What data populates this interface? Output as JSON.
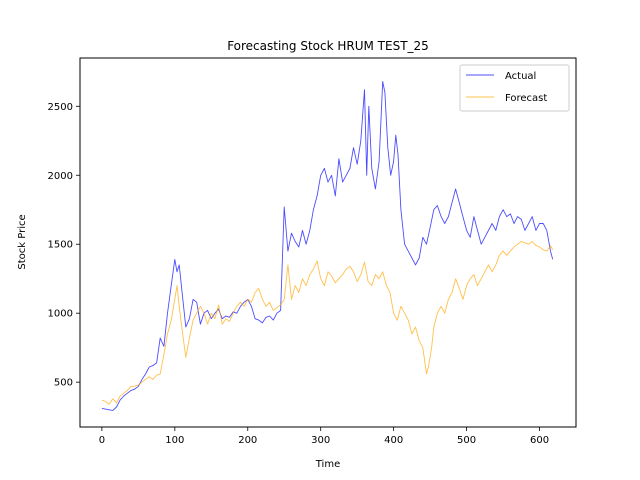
{
  "chart_data": {
    "type": "line",
    "title": "Forecasting Stock HRUM TEST_25",
    "xlabel": "Time",
    "ylabel": "Stock Price",
    "xlim": [
      -30,
      650
    ],
    "ylim": [
      175,
      2850
    ],
    "xticks": [
      0,
      100,
      200,
      300,
      400,
      500,
      600
    ],
    "yticks": [
      500,
      1000,
      1500,
      2000,
      2500
    ],
    "grid": false,
    "legend_position": "top-right",
    "series": [
      {
        "name": "Actual",
        "color": "#0000ff",
        "points": [
          [
            0,
            310
          ],
          [
            5,
            305
          ],
          [
            10,
            300
          ],
          [
            15,
            295
          ],
          [
            20,
            320
          ],
          [
            25,
            370
          ],
          [
            30,
            400
          ],
          [
            35,
            420
          ],
          [
            40,
            440
          ],
          [
            45,
            450
          ],
          [
            50,
            470
          ],
          [
            55,
            520
          ],
          [
            60,
            560
          ],
          [
            65,
            610
          ],
          [
            70,
            620
          ],
          [
            75,
            640
          ],
          [
            80,
            820
          ],
          [
            85,
            760
          ],
          [
            90,
            1000
          ],
          [
            95,
            1200
          ],
          [
            100,
            1390
          ],
          [
            103,
            1300
          ],
          [
            106,
            1350
          ],
          [
            110,
            1150
          ],
          [
            115,
            900
          ],
          [
            120,
            960
          ],
          [
            125,
            1100
          ],
          [
            130,
            1080
          ],
          [
            135,
            920
          ],
          [
            140,
            1000
          ],
          [
            145,
            1020
          ],
          [
            150,
            960
          ],
          [
            155,
            1000
          ],
          [
            160,
            1030
          ],
          [
            165,
            960
          ],
          [
            170,
            980
          ],
          [
            175,
            970
          ],
          [
            180,
            1010
          ],
          [
            185,
            1000
          ],
          [
            190,
            1050
          ],
          [
            195,
            1080
          ],
          [
            200,
            1100
          ],
          [
            205,
            1050
          ],
          [
            210,
            960
          ],
          [
            215,
            950
          ],
          [
            220,
            930
          ],
          [
            225,
            970
          ],
          [
            230,
            980
          ],
          [
            235,
            950
          ],
          [
            240,
            1000
          ],
          [
            245,
            1020
          ],
          [
            250,
            1770
          ],
          [
            255,
            1450
          ],
          [
            260,
            1580
          ],
          [
            265,
            1520
          ],
          [
            270,
            1480
          ],
          [
            275,
            1600
          ],
          [
            280,
            1500
          ],
          [
            285,
            1600
          ],
          [
            290,
            1750
          ],
          [
            295,
            1850
          ],
          [
            300,
            2000
          ],
          [
            305,
            2050
          ],
          [
            310,
            1950
          ],
          [
            315,
            2000
          ],
          [
            320,
            1850
          ],
          [
            325,
            2120
          ],
          [
            330,
            1950
          ],
          [
            335,
            2000
          ],
          [
            340,
            2050
          ],
          [
            345,
            2200
          ],
          [
            350,
            2080
          ],
          [
            355,
            2250
          ],
          [
            360,
            2620
          ],
          [
            363,
            2000
          ],
          [
            366,
            2500
          ],
          [
            370,
            2050
          ],
          [
            375,
            1900
          ],
          [
            380,
            2100
          ],
          [
            385,
            2680
          ],
          [
            388,
            2600
          ],
          [
            392,
            2200
          ],
          [
            396,
            2000
          ],
          [
            400,
            2100
          ],
          [
            403,
            2290
          ],
          [
            406,
            2150
          ],
          [
            410,
            1750
          ],
          [
            415,
            1500
          ],
          [
            420,
            1450
          ],
          [
            425,
            1400
          ],
          [
            430,
            1350
          ],
          [
            435,
            1400
          ],
          [
            440,
            1550
          ],
          [
            445,
            1500
          ],
          [
            450,
            1620
          ],
          [
            455,
            1750
          ],
          [
            460,
            1780
          ],
          [
            465,
            1700
          ],
          [
            470,
            1650
          ],
          [
            475,
            1700
          ],
          [
            480,
            1800
          ],
          [
            485,
            1900
          ],
          [
            490,
            1800
          ],
          [
            495,
            1700
          ],
          [
            500,
            1600
          ],
          [
            505,
            1550
          ],
          [
            510,
            1700
          ],
          [
            515,
            1600
          ],
          [
            520,
            1500
          ],
          [
            525,
            1550
          ],
          [
            530,
            1600
          ],
          [
            535,
            1650
          ],
          [
            540,
            1600
          ],
          [
            545,
            1700
          ],
          [
            550,
            1750
          ],
          [
            555,
            1700
          ],
          [
            560,
            1720
          ],
          [
            565,
            1650
          ],
          [
            570,
            1700
          ],
          [
            575,
            1680
          ],
          [
            580,
            1600
          ],
          [
            585,
            1650
          ],
          [
            590,
            1700
          ],
          [
            595,
            1600
          ],
          [
            600,
            1650
          ],
          [
            605,
            1650
          ],
          [
            610,
            1600
          ],
          [
            615,
            1450
          ],
          [
            618,
            1390
          ]
        ]
      },
      {
        "name": "Forecast",
        "color": "#ffa500",
        "points": [
          [
            0,
            370
          ],
          [
            5,
            360
          ],
          [
            10,
            340
          ],
          [
            15,
            380
          ],
          [
            20,
            350
          ],
          [
            25,
            400
          ],
          [
            30,
            420
          ],
          [
            35,
            440
          ],
          [
            40,
            470
          ],
          [
            45,
            470
          ],
          [
            50,
            480
          ],
          [
            55,
            500
          ],
          [
            60,
            520
          ],
          [
            65,
            540
          ],
          [
            70,
            520
          ],
          [
            75,
            550
          ],
          [
            80,
            560
          ],
          [
            85,
            700
          ],
          [
            90,
            850
          ],
          [
            95,
            950
          ],
          [
            100,
            1100
          ],
          [
            103,
            1200
          ],
          [
            106,
            1050
          ],
          [
            110,
            880
          ],
          [
            115,
            680
          ],
          [
            120,
            820
          ],
          [
            125,
            950
          ],
          [
            130,
            1000
          ],
          [
            135,
            1050
          ],
          [
            140,
            1000
          ],
          [
            145,
            920
          ],
          [
            150,
            1000
          ],
          [
            155,
            960
          ],
          [
            160,
            1060
          ],
          [
            165,
            920
          ],
          [
            170,
            960
          ],
          [
            175,
            940
          ],
          [
            180,
            1000
          ],
          [
            185,
            1050
          ],
          [
            190,
            1080
          ],
          [
            195,
            1050
          ],
          [
            200,
            1100
          ],
          [
            205,
            1080
          ],
          [
            210,
            1150
          ],
          [
            215,
            1180
          ],
          [
            220,
            1100
          ],
          [
            225,
            1050
          ],
          [
            230,
            1080
          ],
          [
            235,
            1020
          ],
          [
            240,
            1040
          ],
          [
            245,
            1060
          ],
          [
            250,
            1100
          ],
          [
            255,
            1350
          ],
          [
            260,
            1100
          ],
          [
            265,
            1200
          ],
          [
            270,
            1150
          ],
          [
            275,
            1250
          ],
          [
            280,
            1200
          ],
          [
            285,
            1280
          ],
          [
            290,
            1320
          ],
          [
            295,
            1380
          ],
          [
            300,
            1250
          ],
          [
            305,
            1200
          ],
          [
            310,
            1300
          ],
          [
            315,
            1270
          ],
          [
            320,
            1220
          ],
          [
            325,
            1250
          ],
          [
            330,
            1280
          ],
          [
            335,
            1320
          ],
          [
            340,
            1340
          ],
          [
            345,
            1300
          ],
          [
            350,
            1230
          ],
          [
            355,
            1280
          ],
          [
            360,
            1370
          ],
          [
            365,
            1230
          ],
          [
            370,
            1200
          ],
          [
            375,
            1280
          ],
          [
            380,
            1250
          ],
          [
            385,
            1300
          ],
          [
            390,
            1200
          ],
          [
            395,
            1150
          ],
          [
            400,
            1000
          ],
          [
            405,
            950
          ],
          [
            410,
            1050
          ],
          [
            415,
            1000
          ],
          [
            420,
            950
          ],
          [
            425,
            850
          ],
          [
            430,
            900
          ],
          [
            435,
            800
          ],
          [
            440,
            750
          ],
          [
            445,
            560
          ],
          [
            448,
            620
          ],
          [
            452,
            750
          ],
          [
            455,
            900
          ],
          [
            460,
            1000
          ],
          [
            465,
            1050
          ],
          [
            470,
            1000
          ],
          [
            475,
            1100
          ],
          [
            480,
            1150
          ],
          [
            485,
            1250
          ],
          [
            490,
            1180
          ],
          [
            495,
            1100
          ],
          [
            500,
            1200
          ],
          [
            505,
            1250
          ],
          [
            510,
            1280
          ],
          [
            515,
            1200
          ],
          [
            520,
            1250
          ],
          [
            525,
            1300
          ],
          [
            530,
            1350
          ],
          [
            535,
            1300
          ],
          [
            540,
            1350
          ],
          [
            545,
            1420
          ],
          [
            550,
            1450
          ],
          [
            555,
            1420
          ],
          [
            560,
            1450
          ],
          [
            565,
            1480
          ],
          [
            570,
            1500
          ],
          [
            575,
            1520
          ],
          [
            580,
            1510
          ],
          [
            585,
            1500
          ],
          [
            590,
            1520
          ],
          [
            595,
            1490
          ],
          [
            600,
            1480
          ],
          [
            605,
            1460
          ],
          [
            610,
            1450
          ],
          [
            615,
            1490
          ],
          [
            618,
            1460
          ]
        ]
      }
    ]
  }
}
